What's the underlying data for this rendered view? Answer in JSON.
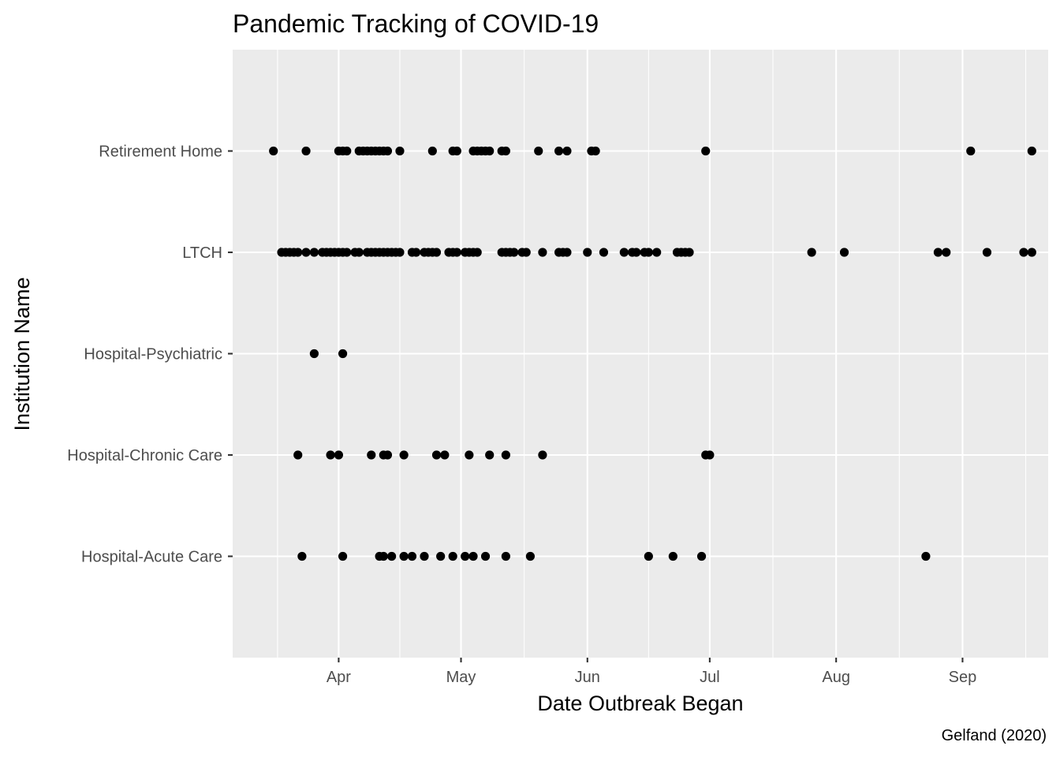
{
  "chart_data": {
    "type": "scatter",
    "title": "Pandemic Tracking of COVID-19",
    "xlabel": "Date Outbreak Began",
    "ylabel": "Institution Name",
    "caption": "Gelfand (2020)",
    "grid": true,
    "legend": "none",
    "xlim": [
      "2020-03-06",
      "2020-09-22"
    ],
    "x_ticks": [
      {
        "date": "2020-04-01",
        "label": "Apr"
      },
      {
        "date": "2020-05-01",
        "label": "May"
      },
      {
        "date": "2020-06-01",
        "label": "Jun"
      },
      {
        "date": "2020-07-01",
        "label": "Jul"
      },
      {
        "date": "2020-08-01",
        "label": "Aug"
      },
      {
        "date": "2020-09-01",
        "label": "Sep"
      }
    ],
    "categories": [
      "Hospital-Acute Care",
      "Hospital-Chronic Care",
      "Hospital-Psychiatric",
      "LTCH",
      "Retirement Home"
    ],
    "series": [
      {
        "category": "Retirement Home",
        "x": [
          "2020-03-16",
          "2020-03-24",
          "2020-04-01",
          "2020-04-02",
          "2020-04-03",
          "2020-04-06",
          "2020-04-07",
          "2020-04-08",
          "2020-04-09",
          "2020-04-10",
          "2020-04-11",
          "2020-04-12",
          "2020-04-13",
          "2020-04-16",
          "2020-04-24",
          "2020-04-29",
          "2020-04-30",
          "2020-05-04",
          "2020-05-05",
          "2020-05-06",
          "2020-05-07",
          "2020-05-08",
          "2020-05-11",
          "2020-05-12",
          "2020-05-20",
          "2020-05-25",
          "2020-05-27",
          "2020-06-02",
          "2020-06-03",
          "2020-06-30",
          "2020-09-03",
          "2020-09-18"
        ]
      },
      {
        "category": "LTCH",
        "x": [
          "2020-03-18",
          "2020-03-19",
          "2020-03-20",
          "2020-03-21",
          "2020-03-22",
          "2020-03-24",
          "2020-03-26",
          "2020-03-28",
          "2020-03-29",
          "2020-03-30",
          "2020-03-31",
          "2020-04-01",
          "2020-04-02",
          "2020-04-03",
          "2020-04-05",
          "2020-04-06",
          "2020-04-08",
          "2020-04-09",
          "2020-04-10",
          "2020-04-11",
          "2020-04-12",
          "2020-04-13",
          "2020-04-14",
          "2020-04-15",
          "2020-04-16",
          "2020-04-19",
          "2020-04-20",
          "2020-04-22",
          "2020-04-23",
          "2020-04-24",
          "2020-04-25",
          "2020-04-28",
          "2020-04-29",
          "2020-04-30",
          "2020-05-02",
          "2020-05-03",
          "2020-05-04",
          "2020-05-05",
          "2020-05-11",
          "2020-05-12",
          "2020-05-13",
          "2020-05-14",
          "2020-05-16",
          "2020-05-17",
          "2020-05-21",
          "2020-05-25",
          "2020-05-26",
          "2020-05-27",
          "2020-06-01",
          "2020-06-05",
          "2020-06-10",
          "2020-06-12",
          "2020-06-13",
          "2020-06-15",
          "2020-06-16",
          "2020-06-18",
          "2020-06-23",
          "2020-06-24",
          "2020-06-25",
          "2020-06-26",
          "2020-07-26",
          "2020-08-03",
          "2020-08-26",
          "2020-08-28",
          "2020-09-07",
          "2020-09-16",
          "2020-09-18"
        ]
      },
      {
        "category": "Hospital-Psychiatric",
        "x": [
          "2020-03-26",
          "2020-04-02"
        ]
      },
      {
        "category": "Hospital-Chronic Care",
        "x": [
          "2020-03-22",
          "2020-03-30",
          "2020-04-01",
          "2020-04-09",
          "2020-04-12",
          "2020-04-13",
          "2020-04-17",
          "2020-04-25",
          "2020-04-27",
          "2020-05-03",
          "2020-05-08",
          "2020-05-12",
          "2020-05-21",
          "2020-06-30",
          "2020-07-01"
        ]
      },
      {
        "category": "Hospital-Acute Care",
        "x": [
          "2020-03-23",
          "2020-04-02",
          "2020-04-11",
          "2020-04-12",
          "2020-04-14",
          "2020-04-17",
          "2020-04-19",
          "2020-04-22",
          "2020-04-26",
          "2020-04-29",
          "2020-05-02",
          "2020-05-04",
          "2020-05-07",
          "2020-05-12",
          "2020-05-18",
          "2020-06-16",
          "2020-06-22",
          "2020-06-29",
          "2020-08-23"
        ]
      }
    ]
  }
}
